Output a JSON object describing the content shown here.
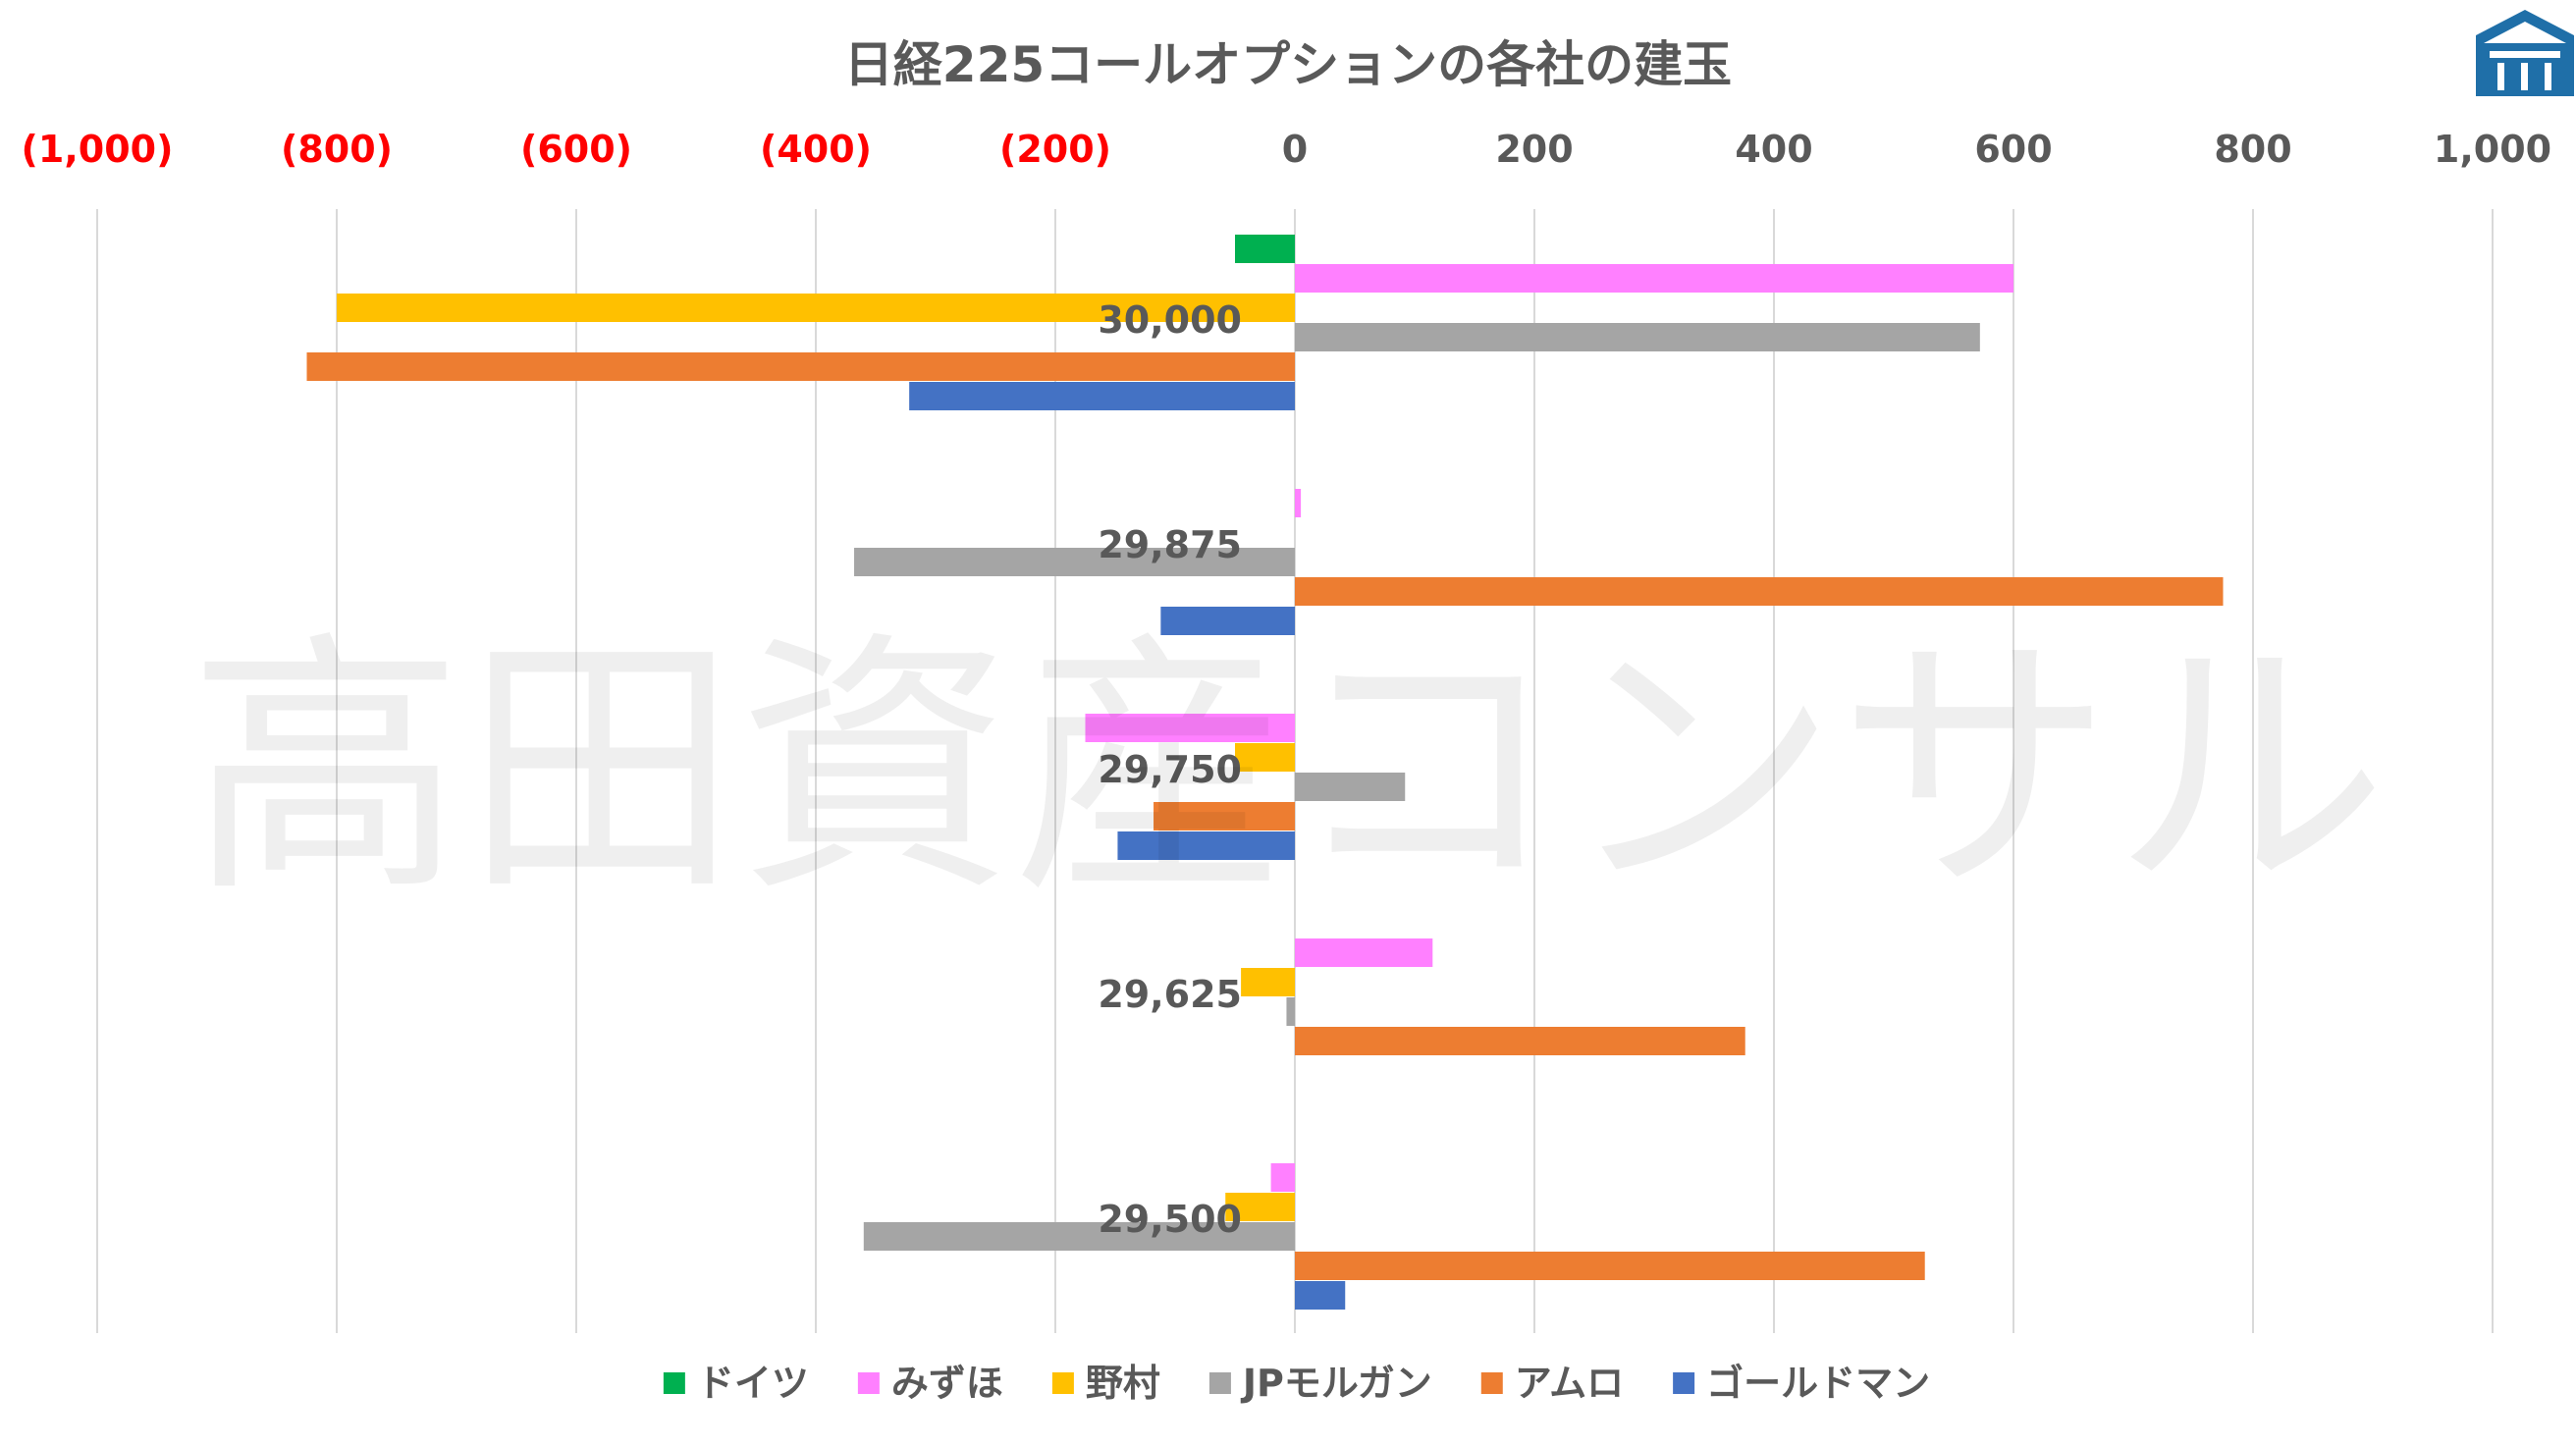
{
  "chart_data": {
    "type": "bar",
    "orientation": "horizontal",
    "title": "日経225コールオプションの各社の建玉",
    "categories": [
      "30,000",
      "29,875",
      "29,750",
      "29,625",
      "29,500"
    ],
    "xlim": [
      -1000,
      1000
    ],
    "x_ticks": [
      {
        "value": -1000,
        "label": "(1,000)"
      },
      {
        "value": -800,
        "label": "(800)"
      },
      {
        "value": -600,
        "label": "(600)"
      },
      {
        "value": -400,
        "label": "(400)"
      },
      {
        "value": -200,
        "label": "(200)"
      },
      {
        "value": 0,
        "label": "0"
      },
      {
        "value": 200,
        "label": "200"
      },
      {
        "value": 400,
        "label": "400"
      },
      {
        "value": 600,
        "label": "600"
      },
      {
        "value": 800,
        "label": "800"
      },
      {
        "value": 1000,
        "label": "1,000"
      }
    ],
    "axis_position": "top",
    "negative_tick_color": "#ff0000",
    "positive_tick_color": "#595959",
    "grid": true,
    "legend_position": "bottom",
    "series": [
      {
        "name": "ドイツ",
        "color": "#00b050",
        "values": [
          -50,
          0,
          0,
          0,
          0
        ]
      },
      {
        "name": "みずほ",
        "color": "#ff80ff",
        "values": [
          600,
          5,
          -175,
          115,
          -20
        ]
      },
      {
        "name": "野村",
        "color": "#ffc000",
        "values": [
          -800,
          0,
          -50,
          -45,
          -58
        ]
      },
      {
        "name": "JPモルガン",
        "color": "#a5a5a5",
        "values": [
          572,
          -368,
          92,
          -7,
          -360
        ]
      },
      {
        "name": "アムロ",
        "color": "#ed7d31",
        "values": [
          -825,
          775,
          -118,
          376,
          526
        ]
      },
      {
        "name": "ゴールドマン",
        "color": "#4472c4",
        "values": [
          -322,
          -112,
          -148,
          0,
          42
        ]
      }
    ]
  },
  "watermark": "高田資産コンサル",
  "logo": {
    "color": "#1f6fa8",
    "icon": "building-roof-logo-icon"
  }
}
